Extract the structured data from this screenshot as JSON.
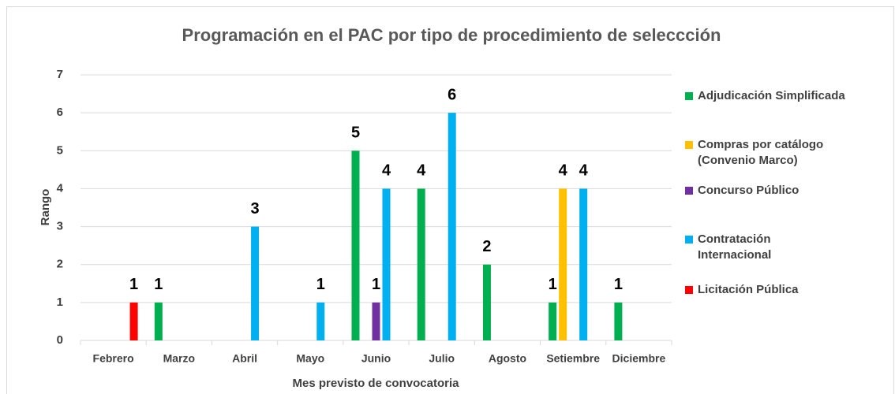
{
  "chart_data": {
    "type": "bar",
    "title": "Programación en el PAC por tipo de procedimiento de seleccción",
    "x_label": "Mes previsto de convocatoria",
    "y_label": "Rango",
    "categories": [
      "Febrero",
      "Marzo",
      "Abril",
      "Mayo",
      "Junio",
      "Julio",
      "Agosto",
      "Setiembre",
      "Diciembre"
    ],
    "series": [
      {
        "name": "Adjudicación Simplificada",
        "color": "#00b050",
        "values": [
          null,
          1,
          null,
          null,
          5,
          4,
          2,
          1,
          1
        ]
      },
      {
        "name": "Compras por catálogo (Convenio Marco)",
        "color": "#ffc000",
        "values": [
          null,
          null,
          null,
          null,
          null,
          null,
          null,
          4,
          null
        ]
      },
      {
        "name": "Concurso Público",
        "color": "#7030a0",
        "values": [
          null,
          null,
          null,
          null,
          1,
          null,
          null,
          null,
          null
        ]
      },
      {
        "name": "Contratación Internacional",
        "color": "#00b0f0",
        "values": [
          null,
          null,
          3,
          1,
          4,
          6,
          null,
          4,
          null
        ]
      },
      {
        "name": "Licitación Pública",
        "color": "#ff0000",
        "values": [
          1,
          null,
          null,
          null,
          null,
          null,
          null,
          null,
          null
        ]
      }
    ],
    "ylim": [
      0,
      7
    ],
    "yticks": [
      0,
      1,
      2,
      3,
      4,
      5,
      6,
      7
    ],
    "grid": true,
    "legend": "right"
  }
}
